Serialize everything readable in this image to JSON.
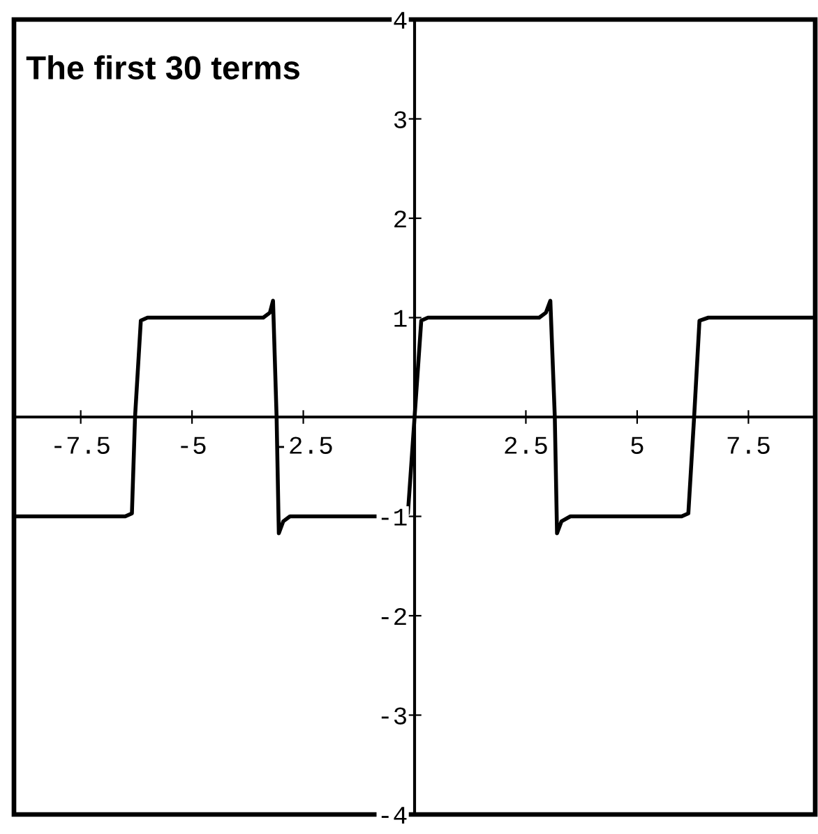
{
  "chart_data": {
    "type": "line",
    "title": "The first 30 terms",
    "x": [
      -9,
      -6.5,
      -6.35,
      -6.28,
      -6.15,
      -6.0,
      -3.4,
      -3.25,
      -3.18,
      -3.1,
      -3.05,
      -2.95,
      -2.8,
      -0.3,
      -0.15,
      0,
      0.15,
      0.3,
      2.8,
      2.95,
      3.05,
      3.15,
      3.2,
      3.3,
      3.5,
      6.0,
      6.15,
      6.28,
      6.4,
      6.6,
      9
    ],
    "series": [
      {
        "color": "#000000",
        "values": [
          -1,
          -1,
          -0.97,
          0,
          0.97,
          1,
          1,
          1.05,
          1.17,
          0,
          -1.17,
          -1.05,
          -1,
          -1,
          -0.97,
          0,
          0.97,
          1,
          1,
          1.05,
          1.17,
          0,
          -1.17,
          -1.05,
          -1,
          -1,
          -0.97,
          0,
          0.97,
          1,
          1
        ]
      }
    ],
    "xlim": [
      -9,
      9
    ],
    "ylim": [
      -4,
      4
    ],
    "xticks": [
      -7.5,
      -5,
      -2.5,
      2.5,
      5,
      7.5
    ],
    "yticks": [
      -4,
      -3,
      -2,
      -1,
      1,
      2,
      3,
      4
    ],
    "grid": false,
    "legend": false,
    "marker": "none",
    "line_style": "solid"
  }
}
